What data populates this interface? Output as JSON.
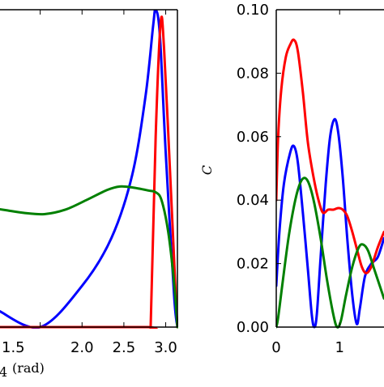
{
  "chart_data": [
    {
      "type": "line",
      "title": "",
      "xlabel_main": "4",
      "xlabel_unit": "(rad)",
      "ylabel": "",
      "xlim": [
        1.0,
        3.14
      ],
      "ylim": [
        0,
        1
      ],
      "x_ticks": [
        1.5,
        2.0,
        2.5,
        3.0
      ],
      "x_tick_labels": [
        "1.5",
        "2.0",
        "2.5",
        "3.0"
      ],
      "grid": false,
      "colors": {
        "blue": "#0000ff",
        "red": "#ff0000",
        "green": "#008000"
      },
      "series": [
        {
          "color": "#0000ff",
          "points": [
            [
              1.0,
              0.052
            ],
            [
              1.5,
              0.0
            ],
            [
              2.0,
              0.13
            ],
            [
              2.35,
              0.28
            ],
            [
              2.6,
              0.48
            ],
            [
              2.76,
              0.73
            ],
            [
              2.85,
              0.95
            ],
            [
              2.88,
              1.0
            ],
            [
              2.93,
              0.92
            ],
            [
              3.0,
              0.55
            ],
            [
              3.1,
              0.1
            ],
            [
              3.14,
              0.0
            ]
          ]
        },
        {
          "color": "#ff0000",
          "points": [
            [
              1.0,
              0.0
            ],
            [
              2.79,
              0.0
            ],
            [
              2.82,
              0.0
            ],
            [
              2.88,
              0.6
            ],
            [
              2.94,
              0.96
            ],
            [
              2.98,
              0.88
            ],
            [
              3.05,
              0.5
            ],
            [
              3.12,
              0.1
            ],
            [
              3.14,
              0.0
            ]
          ]
        },
        {
          "color": "#008000",
          "points": [
            [
              1.0,
              0.372
            ],
            [
              1.1,
              0.368
            ],
            [
              1.3,
              0.36
            ],
            [
              1.55,
              0.356
            ],
            [
              1.8,
              0.37
            ],
            [
              2.05,
              0.4
            ],
            [
              2.3,
              0.432
            ],
            [
              2.45,
              0.443
            ],
            [
              2.6,
              0.44
            ],
            [
              2.8,
              0.43
            ],
            [
              2.88,
              0.425
            ],
            [
              2.95,
              0.4
            ],
            [
              3.03,
              0.3
            ],
            [
              3.1,
              0.14
            ],
            [
              3.14,
              0.0
            ]
          ]
        }
      ]
    },
    {
      "type": "line",
      "title": "",
      "xlabel": "",
      "ylabel": "C",
      "xlim": [
        0,
        1.7
      ],
      "ylim": [
        0,
        0.1
      ],
      "x_ticks": [
        0,
        1
      ],
      "x_tick_labels": [
        "0",
        "1"
      ],
      "y_ticks": [
        0.0,
        0.02,
        0.04,
        0.06,
        0.08,
        0.1
      ],
      "y_tick_labels": [
        "0.00",
        "0.02",
        "0.04",
        "0.06",
        "0.08",
        "0.10"
      ],
      "grid": false,
      "colors": {
        "blue": "#0000ff",
        "red": "#ff0000",
        "green": "#008000"
      },
      "series": [
        {
          "color": "#0000ff",
          "points": [
            [
              0.0,
              0.013
            ],
            [
              0.05,
              0.03
            ],
            [
              0.12,
              0.045
            ],
            [
              0.22,
              0.055
            ],
            [
              0.28,
              0.057
            ],
            [
              0.34,
              0.052
            ],
            [
              0.42,
              0.036
            ],
            [
              0.5,
              0.018
            ],
            [
              0.56,
              0.004
            ],
            [
              0.6,
              0.0
            ],
            [
              0.64,
              0.004
            ],
            [
              0.7,
              0.022
            ],
            [
              0.78,
              0.045
            ],
            [
              0.85,
              0.06
            ],
            [
              0.92,
              0.0655
            ],
            [
              0.98,
              0.061
            ],
            [
              1.05,
              0.047
            ],
            [
              1.12,
              0.028
            ],
            [
              1.2,
              0.01
            ],
            [
              1.27,
              0.001
            ],
            [
              1.32,
              0.006
            ],
            [
              1.4,
              0.016
            ],
            [
              1.5,
              0.02
            ],
            [
              1.6,
              0.022
            ],
            [
              1.7,
              0.028
            ]
          ]
        },
        {
          "color": "#ff0000",
          "points": [
            [
              0.0,
              0.04
            ],
            [
              0.03,
              0.06
            ],
            [
              0.08,
              0.075
            ],
            [
              0.15,
              0.085
            ],
            [
              0.22,
              0.089
            ],
            [
              0.28,
              0.0905
            ],
            [
              0.34,
              0.087
            ],
            [
              0.42,
              0.074
            ],
            [
              0.5,
              0.058
            ],
            [
              0.6,
              0.046
            ],
            [
              0.68,
              0.039
            ],
            [
              0.74,
              0.036
            ],
            [
              0.82,
              0.037
            ],
            [
              0.9,
              0.037
            ],
            [
              0.98,
              0.0375
            ],
            [
              1.05,
              0.037
            ],
            [
              1.12,
              0.035
            ],
            [
              1.2,
              0.03
            ],
            [
              1.28,
              0.024
            ],
            [
              1.35,
              0.019
            ],
            [
              1.42,
              0.017
            ],
            [
              1.5,
              0.019
            ],
            [
              1.6,
              0.025
            ],
            [
              1.7,
              0.03
            ]
          ]
        },
        {
          "color": "#008000",
          "points": [
            [
              0.0,
              0.0
            ],
            [
              0.03,
              0.003
            ],
            [
              0.1,
              0.014
            ],
            [
              0.2,
              0.029
            ],
            [
              0.3,
              0.04
            ],
            [
              0.38,
              0.0455
            ],
            [
              0.45,
              0.047
            ],
            [
              0.52,
              0.045
            ],
            [
              0.6,
              0.039
            ],
            [
              0.7,
              0.028
            ],
            [
              0.8,
              0.015
            ],
            [
              0.9,
              0.004
            ],
            [
              0.96,
              0.0
            ],
            [
              1.02,
              0.002
            ],
            [
              1.1,
              0.01
            ],
            [
              1.2,
              0.019
            ],
            [
              1.3,
              0.025
            ],
            [
              1.37,
              0.026
            ],
            [
              1.45,
              0.024
            ],
            [
              1.55,
              0.018
            ],
            [
              1.65,
              0.012
            ],
            [
              1.7,
              0.009
            ]
          ]
        }
      ]
    }
  ]
}
